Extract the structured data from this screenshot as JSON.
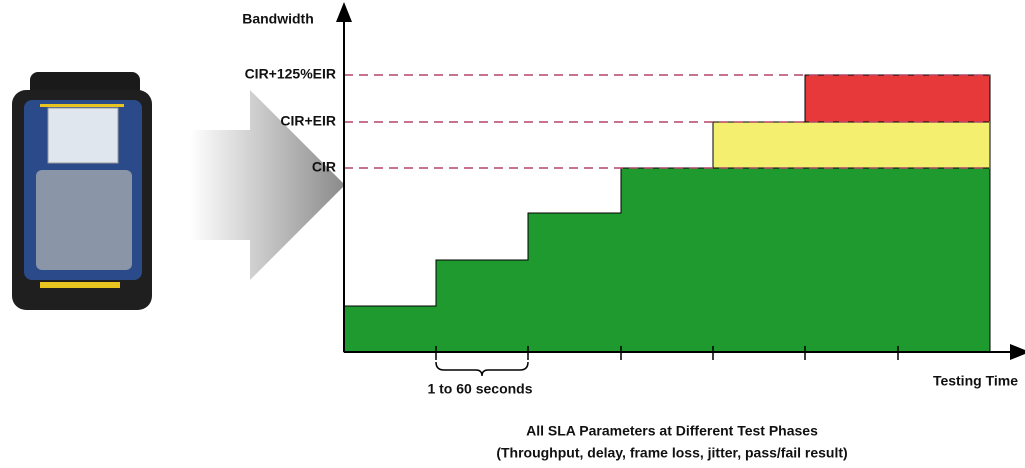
{
  "y_axis_label": "Bandwidth",
  "x_axis_label": "Testing Time",
  "levels": [
    "CIR+125%EIR",
    "CIR+EIR",
    "CIR"
  ],
  "interval_label": "1 to 60 seconds",
  "caption": {
    "title": "All SLA Parameters at Different Test Phases",
    "subtitle": "(Throughput, delay, frame loss, jitter, pass/fail result)"
  }
}
